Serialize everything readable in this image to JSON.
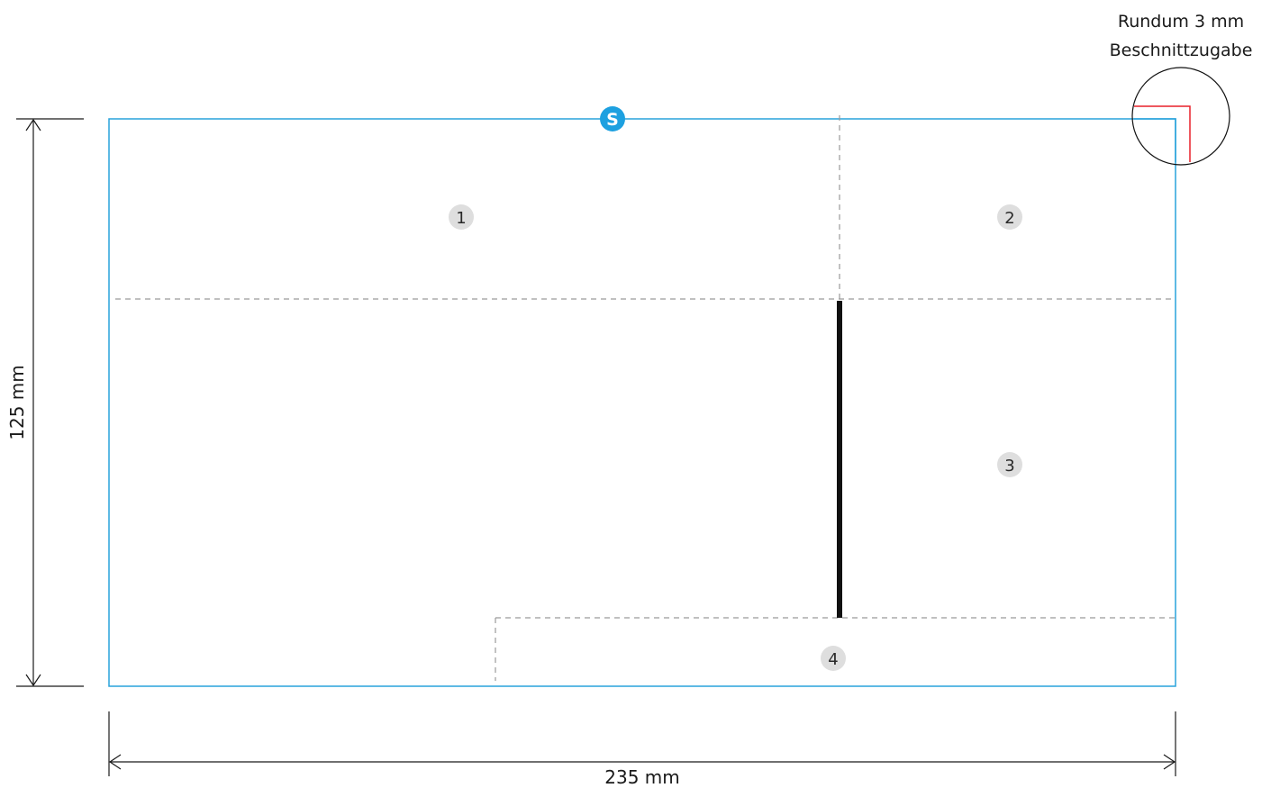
{
  "dimensions": {
    "width_label": "235 mm",
    "height_label": "125 mm"
  },
  "bleed_note": {
    "line1": "Rundum 3 mm",
    "line2": "Beschnittzugabe"
  },
  "start_marker": {
    "label": "S"
  },
  "panels": [
    {
      "number": "1"
    },
    {
      "number": "2"
    },
    {
      "number": "3"
    },
    {
      "number": "4"
    }
  ],
  "colors": {
    "trim_line": "#29a3dc",
    "start_marker": "#1da0e0",
    "bleed_line": "#e8202a",
    "fold_line": "#9a9a9a",
    "slit_line": "#111111",
    "panel_badge": "#dedede",
    "dimension_line": "#1a1a1a"
  }
}
